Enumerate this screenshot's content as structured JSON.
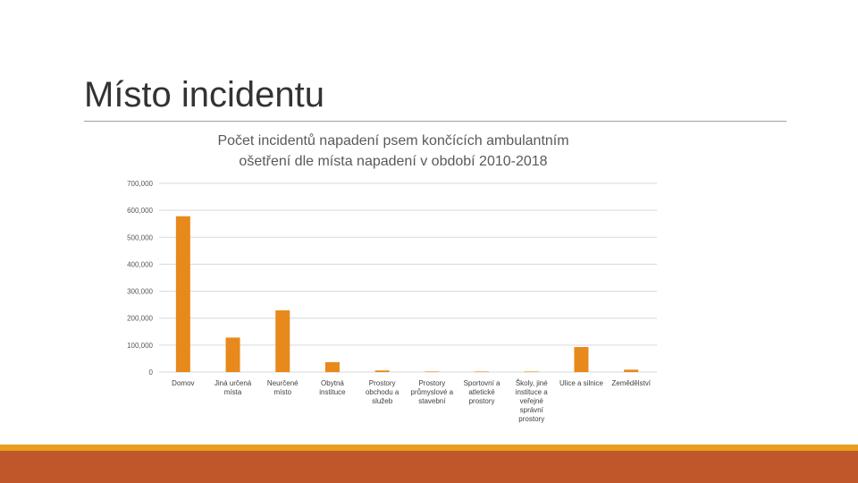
{
  "slide": {
    "title": "Místo incidentu"
  },
  "colors": {
    "bar": "#e8891c",
    "accent": "#e8a020",
    "footer": "#c0572a"
  },
  "chart_data": {
    "type": "bar",
    "title_lines": [
      "Počet incidentů napadení psem končících ambulantním",
      "ošetření dle místa napadení v období 2010-2018"
    ],
    "categories": [
      [
        "Domov"
      ],
      [
        "Jiná určená",
        "místa"
      ],
      [
        "Neurčené",
        "místo"
      ],
      [
        "Obytná",
        "instituce"
      ],
      [
        "Prostory",
        "obchodu a",
        "služeb"
      ],
      [
        "Prostory",
        "průmyslové a",
        "stavební"
      ],
      [
        "Sportovní a",
        "atletické",
        "prostory"
      ],
      [
        "Školy, jiné",
        "instituce a",
        "veřejné",
        "správní",
        "prostory"
      ],
      [
        "Ulice a silnice"
      ],
      [
        "Zemědělství"
      ]
    ],
    "values": [
      578000,
      128000,
      229000,
      37000,
      6000,
      1500,
      500,
      1000,
      93000,
      9000
    ],
    "ylim": [
      0,
      700000
    ],
    "yticks": [
      {
        "value": 0,
        "label": "0"
      },
      {
        "value": 100000,
        "label": "100,000"
      },
      {
        "value": 200000,
        "label": "200,000"
      },
      {
        "value": 300000,
        "label": "300,000"
      },
      {
        "value": 400000,
        "label": "400,000"
      },
      {
        "value": 500000,
        "label": "500,000"
      },
      {
        "value": 600000,
        "label": "600,000"
      },
      {
        "value": 700000,
        "label": "700,000"
      }
    ],
    "grid": true,
    "legend": "none"
  }
}
